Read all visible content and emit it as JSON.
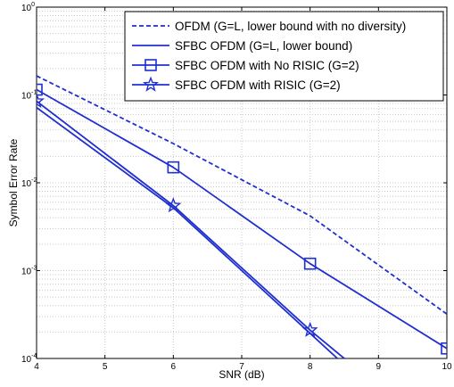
{
  "chart_data": {
    "type": "line",
    "xlabel": "SNR (dB)",
    "ylabel": "Symbol Error Rate",
    "xlim": [
      4,
      10
    ],
    "ylim": [
      0.0001,
      1
    ],
    "y_scale": "log",
    "grid": "on",
    "legend_position": "top-right",
    "x_ticks": [
      "4",
      "5",
      "6",
      "7",
      "8",
      "9",
      "10"
    ],
    "y_ticks": [
      {
        "base": "10",
        "exp": "0",
        "value": 1
      },
      {
        "base": "10",
        "exp": "-1",
        "value": 0.1
      },
      {
        "base": "10",
        "exp": "-2",
        "value": 0.01
      },
      {
        "base": "10",
        "exp": "-3",
        "value": 0.001
      },
      {
        "base": "10",
        "exp": "-4",
        "value": 0.0001
      }
    ],
    "series": [
      {
        "name": "OFDM (G=L, lower bound with no diversity)",
        "style": "dashed",
        "marker": "none",
        "x": [
          4,
          6,
          8,
          10
        ],
        "y": [
          0.165,
          0.028,
          0.0042,
          0.00032
        ]
      },
      {
        "name": "SFBC OFDM (G=L, lower bound)",
        "style": "solid",
        "marker": "none",
        "x": [
          4,
          6,
          8.4
        ],
        "y": [
          0.072,
          0.0052,
          0.0001
        ]
      },
      {
        "name": "SFBC OFDM with No RISIC (G=2)",
        "style": "solid",
        "marker": "square",
        "x": [
          4,
          6,
          8,
          10
        ],
        "y": [
          0.115,
          0.015,
          0.0012,
          0.00013
        ]
      },
      {
        "name": "SFBC OFDM with RISIC (G=2)",
        "style": "solid",
        "marker": "star",
        "x": [
          4,
          6,
          8,
          8.5
        ],
        "y": [
          0.085,
          0.0055,
          0.00021,
          0.0001
        ]
      }
    ],
    "colors": {
      "series": "#1f2fd0",
      "grid": "#c8c8c8",
      "axes": "#000000"
    }
  }
}
